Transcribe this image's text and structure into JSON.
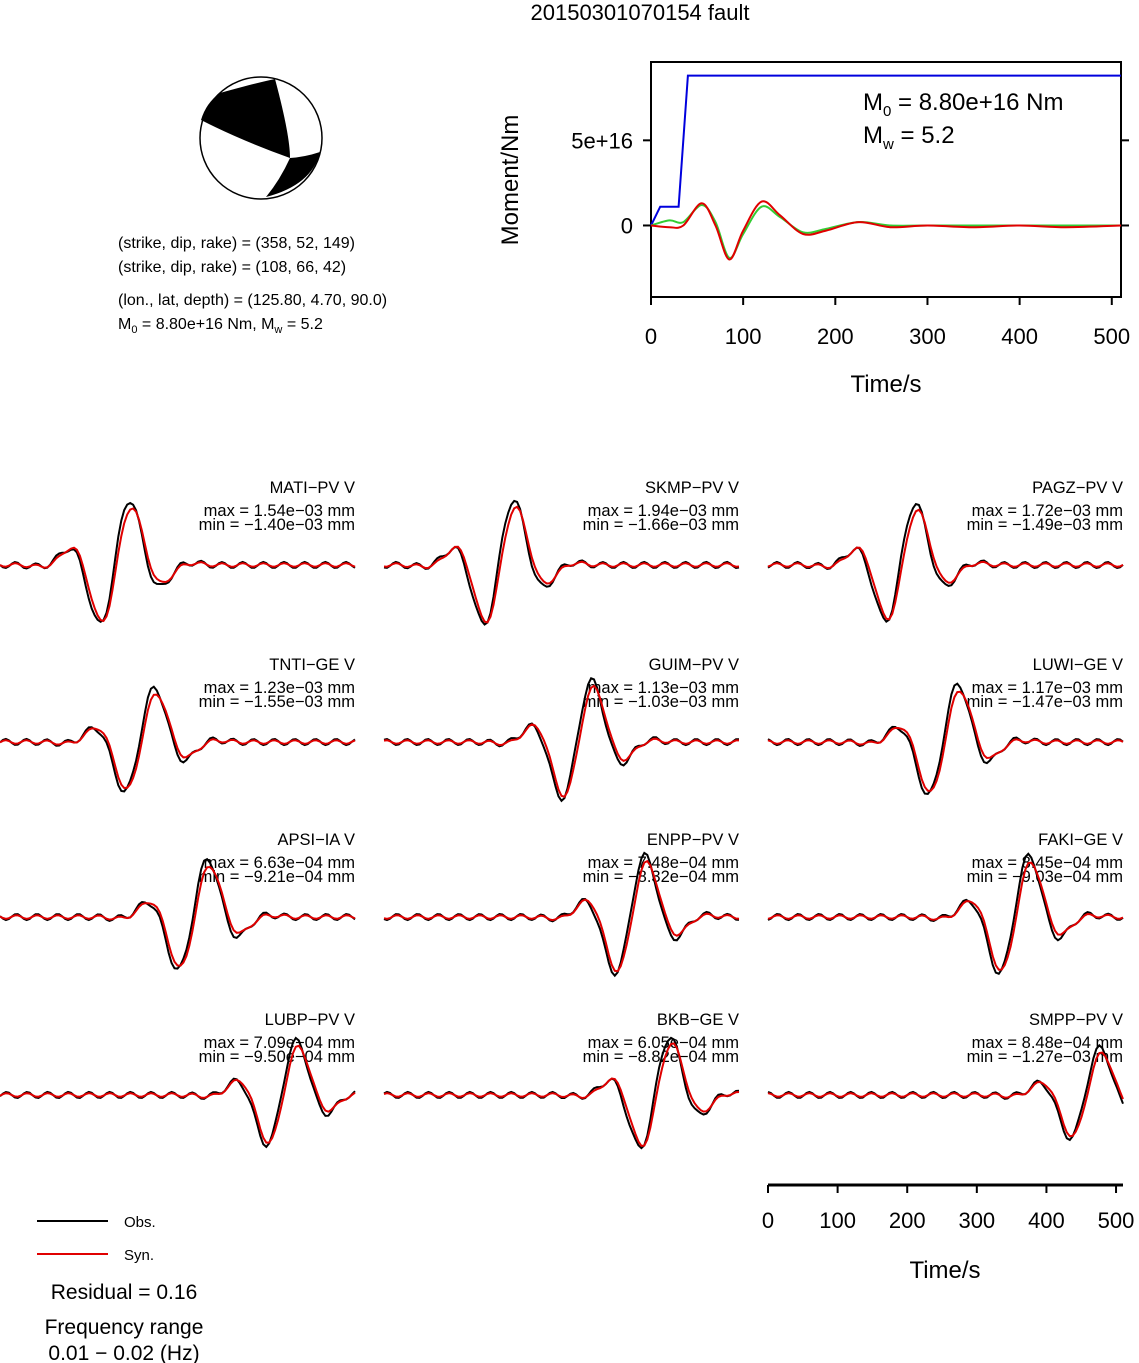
{
  "title": "20150301070154 fault",
  "beachball": {
    "solution_lines": [
      "(strike, dip, rake) = (358, 52, 149)",
      "(strike, dip, rake) = (108, 66, 42)",
      "(lon., lat, depth) = (125.80, 4.70, 90.0)"
    ],
    "moment_line": {
      "prefix": "M",
      "sub": "0",
      "rest": " = 8.80e+16 Nm, M",
      "sub2": "w",
      "tail": " = 5.2"
    }
  },
  "colors": {
    "observed": "#000000",
    "synthetic": "#e00000",
    "cumulative_moment": "#0000dd",
    "moment_rate_green": "#33cc33"
  },
  "chart_data": [
    {
      "type": "line",
      "name": "moment",
      "xlabel": "Time/s",
      "ylabel": "Moment/Nm",
      "xlim": [
        0,
        510
      ],
      "ylim": [
        -4.2e+16,
        9.6e+16
      ],
      "xticks": [
        0,
        100,
        200,
        300,
        400,
        500
      ],
      "xtick_labels": [
        "0",
        "100",
        "200",
        "300",
        "400",
        "500"
      ],
      "yticks": [
        0,
        5e+16
      ],
      "ytick_labels": [
        "0",
        "5e+16"
      ],
      "annotation": {
        "m0_sym": "M",
        "m0_sub": "0",
        "m0_val": " = 8.80e+16 Nm",
        "mw_sym": "M",
        "mw_sub": "w",
        "mw_val": " = 5.2"
      },
      "series": [
        {
          "color": "#0000dd",
          "x": [
            0,
            10,
            10,
            30,
            30,
            40,
            40,
            510
          ],
          "y": [
            0,
            1.1e+16,
            1.1e+16,
            1.1e+16,
            1.1e+16,
            8.8e+16,
            8.8e+16,
            8.8e+16
          ]
        },
        {
          "color": "#33cc33",
          "x": [
            0,
            20,
            35,
            55,
            70,
            85,
            100,
            120,
            140,
            165,
            190,
            225,
            260,
            300,
            350,
            400,
            450,
            510
          ],
          "y": [
            0,
            3000000000000000.0,
            2000000000000000.0,
            1.2e+16,
            2000000000000000.0,
            -1.9e+16,
            -5000000000000000.0,
            1.1e+16,
            5000000000000000.0,
            -4000000000000000.0,
            -2000000000000000.0,
            2000000000000000.0,
            0,
            0,
            0,
            0,
            0,
            0
          ]
        },
        {
          "color": "#e00000",
          "x": [
            0,
            20,
            35,
            55,
            70,
            85,
            100,
            120,
            140,
            165,
            190,
            225,
            260,
            300,
            350,
            400,
            450,
            510
          ],
          "y": [
            0,
            -1000000000000000.0,
            0,
            1.3e+16,
            0,
            -2e+16,
            -3000000000000000.0,
            1.4e+16,
            6000000000000000.0,
            -5000000000000000.0,
            -3000000000000000.0,
            2000000000000000.0,
            -1000000000000000.0,
            0,
            -1000000000000000.0,
            0,
            -1000000000000000.0,
            0
          ]
        }
      ]
    },
    {
      "type": "line",
      "name": "waveforms",
      "xlabel": "Time/s",
      "xlim": [
        0,
        510
      ],
      "xticks": [
        0,
        100,
        200,
        300,
        400,
        500
      ],
      "xtick_labels": [
        "0",
        "100",
        "200",
        "300",
        "400",
        "500"
      ],
      "legend": [
        {
          "label": "Obs.",
          "color": "#000000"
        },
        {
          "label": "Syn.",
          "color": "#e00000"
        }
      ],
      "residual": "Residual = 0.16",
      "frequency_label": "Frequency range",
      "frequency_range": "0.01 − 0.02 (Hz)",
      "stations": [
        {
          "name": "MATI−PV V",
          "max": "max = 1.54e−03 mm",
          "min": "min = −1.40e−03 mm"
        },
        {
          "name": "SKMP−PV V",
          "max": "max = 1.94e−03 mm",
          "min": "min = −1.66e−03 mm"
        },
        {
          "name": "PAGZ−PV V",
          "max": "max = 1.72e−03 mm",
          "min": "min = −1.49e−03 mm"
        },
        {
          "name": "TNTI−GE V",
          "max": "max = 1.23e−03 mm",
          "min": "min = −1.55e−03 mm"
        },
        {
          "name": "GUIM−PV V",
          "max": "max = 1.13e−03 mm",
          "min": "min = −1.03e−03 mm"
        },
        {
          "name": "LUWI−GE V",
          "max": "max = 1.17e−03 mm",
          "min": "min = −1.47e−03 mm"
        },
        {
          "name": "APSI−IA V",
          "max": "max = 6.63e−04 mm",
          "min": "min = −9.21e−04 mm"
        },
        {
          "name": "ENPP−PV V",
          "max": "max = 7.48e−04 mm",
          "min": "min = −8.32e−04 mm"
        },
        {
          "name": "FAKI−GE V",
          "max": "max = 8.45e−04 mm",
          "min": "min = −9.03e−04 mm"
        },
        {
          "name": "LUBP−PV V",
          "max": "max = 7.09e−04 mm",
          "min": "min = −9.50e−04 mm"
        },
        {
          "name": "BKB−GE V",
          "max": "max = 6.05e−04 mm",
          "min": "min = −8.82e−04 mm"
        },
        {
          "name": "SMPP−PV V",
          "max": "max = 8.48e−04 mm",
          "min": "min = −1.27e−03 mm"
        }
      ]
    }
  ]
}
